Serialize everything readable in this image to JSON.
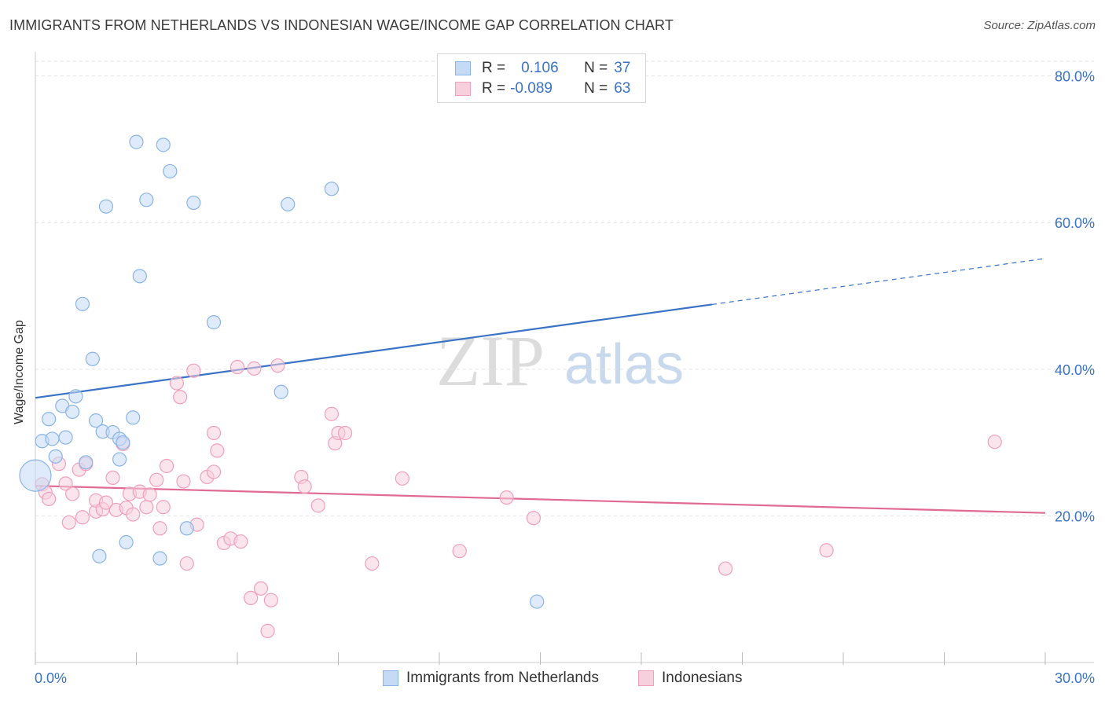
{
  "chart_data": {
    "type": "scatter",
    "title": "IMMIGRANTS FROM NETHERLANDS VS INDONESIAN WAGE/INCOME GAP CORRELATION CHART",
    "source": "Source: ZipAtlas.com",
    "ylabel": "Wage/Income Gap",
    "xlabel": "",
    "xlim": [
      0,
      30
    ],
    "ylim": [
      0,
      82
    ],
    "x_ticks_labeled": [
      "0.0%",
      "30.0%"
    ],
    "y_ticks": [
      {
        "value": 20,
        "label": "20.0%"
      },
      {
        "value": 40,
        "label": "40.0%"
      },
      {
        "value": 60,
        "label": "60.0%"
      },
      {
        "value": 80,
        "label": "80.0%"
      }
    ],
    "watermark": {
      "zip": "ZIP",
      "atlas": "atlas"
    },
    "legend": [
      {
        "r_label": "R =",
        "r_value": "0.106",
        "n_label": "N =",
        "n_value": "37"
      },
      {
        "r_label": "R =",
        "r_value": "-0.089",
        "n_label": "N =",
        "n_value": "63"
      }
    ],
    "series": [
      {
        "name": "Immigrants from Netherlands",
        "color": "#8ab4e8",
        "fill": "#c5daf5",
        "line_color": "#3a73c6",
        "trend": {
          "x0": 0,
          "y0": 36.1,
          "x_solid_end": 20.1,
          "x1": 30,
          "y1": 55.1
        },
        "points": [
          [
            0.0,
            25.5
          ],
          [
            0.2,
            30.2
          ],
          [
            0.4,
            33.2
          ],
          [
            0.5,
            30.5
          ],
          [
            0.6,
            28.1
          ],
          [
            0.8,
            35.0
          ],
          [
            0.9,
            30.7
          ],
          [
            1.1,
            34.2
          ],
          [
            1.2,
            36.3
          ],
          [
            1.4,
            48.9
          ],
          [
            1.5,
            27.3
          ],
          [
            1.7,
            41.4
          ],
          [
            1.8,
            33.0
          ],
          [
            1.9,
            14.5
          ],
          [
            2.0,
            31.5
          ],
          [
            2.1,
            62.2
          ],
          [
            2.3,
            31.4
          ],
          [
            2.5,
            30.5
          ],
          [
            2.5,
            27.7
          ],
          [
            2.6,
            30.0
          ],
          [
            2.7,
            16.4
          ],
          [
            2.9,
            33.4
          ],
          [
            3.0,
            71.0
          ],
          [
            3.1,
            52.7
          ],
          [
            3.3,
            63.1
          ],
          [
            3.7,
            14.2
          ],
          [
            3.8,
            70.6
          ],
          [
            4.0,
            67.0
          ],
          [
            4.5,
            18.3
          ],
          [
            4.7,
            62.7
          ],
          [
            5.3,
            46.4
          ],
          [
            7.3,
            36.9
          ],
          [
            7.5,
            62.5
          ],
          [
            8.8,
            64.6
          ],
          [
            14.9,
            8.3
          ]
        ]
      },
      {
        "name": "Indonesians",
        "color": "#f0a0bb",
        "fill": "#f8cfdc",
        "line_color": "#e06a92",
        "trend": {
          "x0": 0,
          "y0": 24.1,
          "x1": 30,
          "y1": 20.4
        },
        "points": [
          [
            0.2,
            24.3
          ],
          [
            0.3,
            23.2
          ],
          [
            0.4,
            22.3
          ],
          [
            0.7,
            27.1
          ],
          [
            0.9,
            24.4
          ],
          [
            1.0,
            19.1
          ],
          [
            1.1,
            23.0
          ],
          [
            1.3,
            26.3
          ],
          [
            1.4,
            19.8
          ],
          [
            1.5,
            27.1
          ],
          [
            1.8,
            20.6
          ],
          [
            1.8,
            22.1
          ],
          [
            2.0,
            20.9
          ],
          [
            2.1,
            21.8
          ],
          [
            2.3,
            25.2
          ],
          [
            2.4,
            20.8
          ],
          [
            2.6,
            29.8
          ],
          [
            2.7,
            21.1
          ],
          [
            2.8,
            23.0
          ],
          [
            2.9,
            20.2
          ],
          [
            3.1,
            23.3
          ],
          [
            3.3,
            21.2
          ],
          [
            3.4,
            22.9
          ],
          [
            3.6,
            24.9
          ],
          [
            3.7,
            18.3
          ],
          [
            3.8,
            21.2
          ],
          [
            3.9,
            26.8
          ],
          [
            4.2,
            38.1
          ],
          [
            4.3,
            36.2
          ],
          [
            4.4,
            24.7
          ],
          [
            4.5,
            13.5
          ],
          [
            4.7,
            39.8
          ],
          [
            4.8,
            18.8
          ],
          [
            5.1,
            25.3
          ],
          [
            5.3,
            26.0
          ],
          [
            5.3,
            31.3
          ],
          [
            5.4,
            28.9
          ],
          [
            5.6,
            16.3
          ],
          [
            5.8,
            16.9
          ],
          [
            6.0,
            40.3
          ],
          [
            6.1,
            16.5
          ],
          [
            6.4,
            8.8
          ],
          [
            6.5,
            40.1
          ],
          [
            6.7,
            10.1
          ],
          [
            6.9,
            4.3
          ],
          [
            7.0,
            8.5
          ],
          [
            7.2,
            40.5
          ],
          [
            7.9,
            25.3
          ],
          [
            8.0,
            24.0
          ],
          [
            8.4,
            21.4
          ],
          [
            8.8,
            33.9
          ],
          [
            8.9,
            29.9
          ],
          [
            9.0,
            31.3
          ],
          [
            9.2,
            31.3
          ],
          [
            10.0,
            13.5
          ],
          [
            10.9,
            25.1
          ],
          [
            12.6,
            15.2
          ],
          [
            14.0,
            22.5
          ],
          [
            14.8,
            19.7
          ],
          [
            20.5,
            12.8
          ],
          [
            23.5,
            15.3
          ],
          [
            28.5,
            30.1
          ]
        ]
      }
    ]
  }
}
